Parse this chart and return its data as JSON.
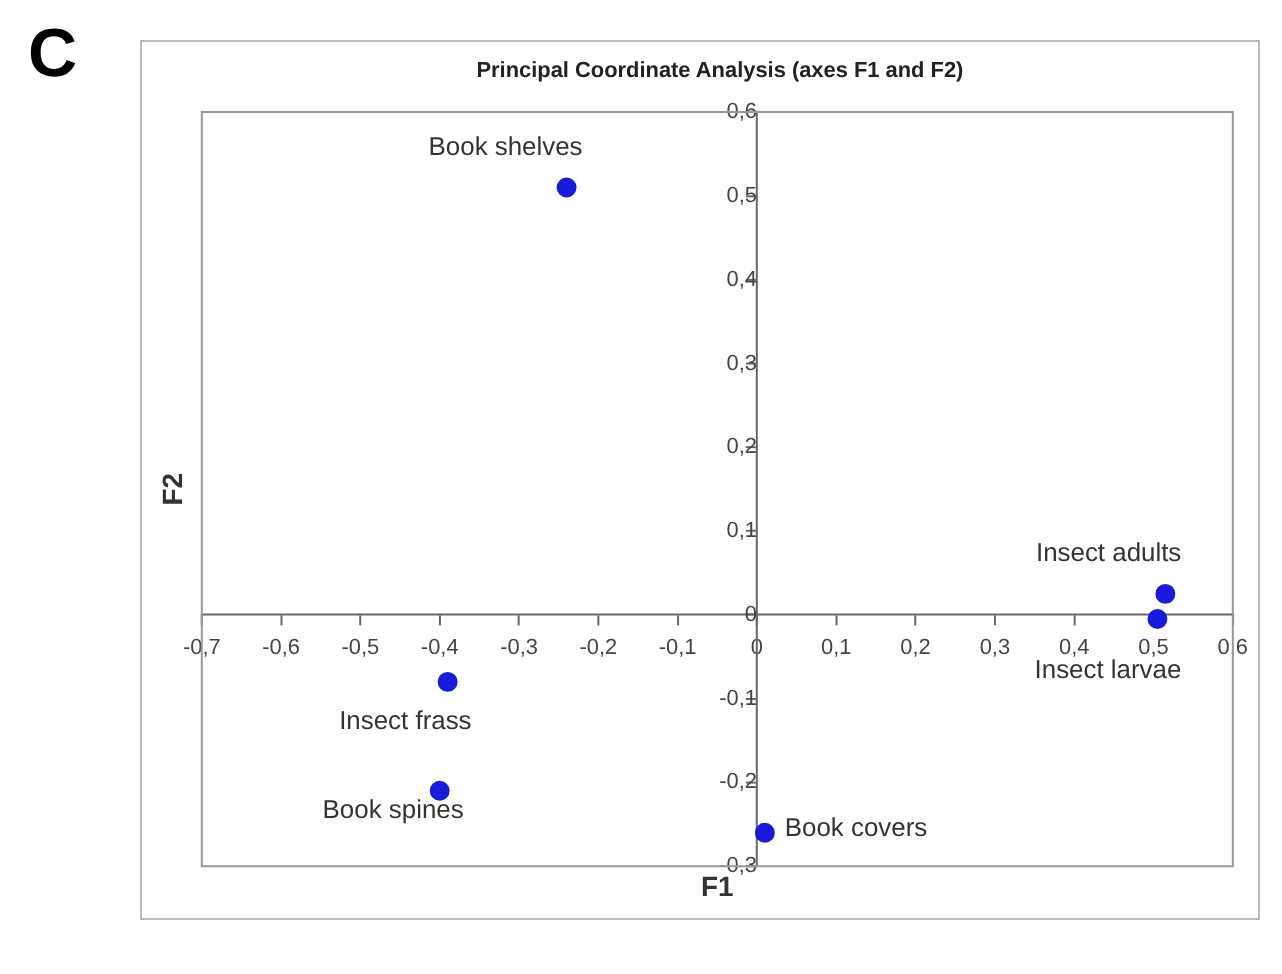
{
  "chart_data": {
    "type": "scatter",
    "title": "Principal Coordinate Analysis (axes F1 and F2)",
    "xlabel": "F1",
    "ylabel": "F2",
    "x": [
      -0.24,
      0.515,
      0.505,
      -0.39,
      -0.4,
      0.01
    ],
    "series": [
      {
        "color": "#1a1adb",
        "values": [
          0.51,
          0.025,
          -0.005,
          -0.08,
          -0.21,
          -0.26
        ]
      }
    ],
    "xlim": [
      -0.7,
      0.6
    ],
    "ylim": [
      -0.3,
      0.6
    ],
    "xticks": [
      {
        "value": -0.7,
        "label": "-0,7"
      },
      {
        "value": -0.6,
        "label": "-0,6"
      },
      {
        "value": -0.5,
        "label": "-0,5"
      },
      {
        "value": -0.4,
        "label": "-0,4"
      },
      {
        "value": -0.3,
        "label": "-0,3"
      },
      {
        "value": -0.2,
        "label": "-0,2"
      },
      {
        "value": -0.1,
        "label": "-0,1"
      },
      0,
      {
        "value": 0.1,
        "label": "0,1"
      },
      {
        "value": 0.2,
        "label": "0,2"
      },
      {
        "value": 0.3,
        "label": "0,3"
      },
      {
        "value": 0.4,
        "label": "0,4"
      },
      {
        "value": 0.5,
        "label": "0,5"
      },
      {
        "value": 0.6,
        "label": "0,6"
      }
    ],
    "yticks": [
      {
        "value": -0.3,
        "label": "-0,3"
      },
      {
        "value": -0.2,
        "label": "-0,2"
      },
      {
        "value": -0.1,
        "label": "-0,1"
      },
      0,
      {
        "value": 0.1,
        "label": "0,1"
      },
      {
        "value": 0.2,
        "label": "0,2"
      },
      {
        "value": 0.3,
        "label": "0,3"
      },
      {
        "value": 0.4,
        "label": "0,4"
      },
      {
        "value": 0.5,
        "label": "0,5"
      },
      {
        "value": 0.6,
        "label": "0,6"
      }
    ],
    "grid": false,
    "legend": false,
    "marker": "circle",
    "annotations": [
      "C",
      {
        "text": "Book shelves",
        "x": -0.24,
        "y": 0.51
      },
      {
        "text": "Insect adults",
        "x": 0.515,
        "y": 0.025
      },
      {
        "text": "Insect larvae",
        "x": 0.505,
        "y": -0.005
      },
      {
        "text": "Insect frass",
        "x": -0.39,
        "y": -0.08
      },
      {
        "text": "Book spines",
        "x": -0.4,
        "y": -0.21
      },
      {
        "text": "Book covers",
        "x": 0.01,
        "y": -0.26
      }
    ]
  }
}
